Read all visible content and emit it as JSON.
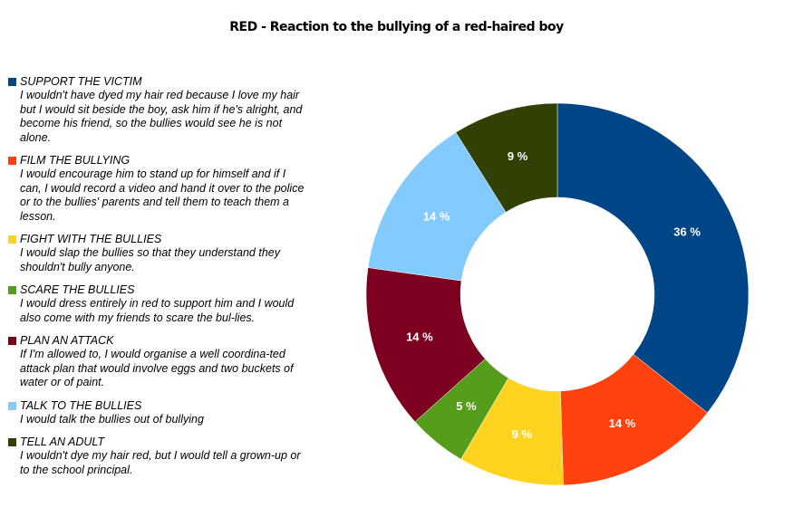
{
  "title": "RED - Reaction to the bullying of a red-haired boy",
  "chart_data": {
    "type": "pie",
    "title": "RED - Reaction to the bullying of a red-haired boy",
    "donut": true,
    "legend_position": "left",
    "slices": [
      {
        "name": "SUPPORT THE VICTIM",
        "value": 36,
        "label": "36 %",
        "color": "#004586",
        "label_color": "#ffffff",
        "description": "I wouldn't have dyed my hair red because I love my hair but I would sit beside the boy, ask him if he's alright, and become his friend, so the bullies would see he is not alone."
      },
      {
        "name": "FILM THE BULLYING",
        "value": 14,
        "label": "14 %",
        "color": "#ff420e",
        "label_color": "#ffffff",
        "description": "I would encourage him to stand up for himself and if I can, I would record a video and hand it over to the police or to the bullies' parents and tell them to teach them a lesson."
      },
      {
        "name": "FIGHT WITH THE BULLIES",
        "value": 9,
        "label": "9 %",
        "color": "#ffd320",
        "label_color": "#ffffff",
        "description": "I would slap the bullies so that they understand they shouldn't bully anyone."
      },
      {
        "name": "SCARE THE BULLIES",
        "value": 5,
        "label": "5 %",
        "color": "#579d1c",
        "label_color": "#ffffff",
        "description": "I would dress entirely in red to support him and I would also come with my friends to scare the bul-lies."
      },
      {
        "name": "PLAN AN ATTACK",
        "value": 14,
        "label": "14 %",
        "color": "#7e0021",
        "label_color": "#ffffff",
        "description": "If I'm allowed to, I would organise a well coordina-ted attack plan that would involve eggs and two buckets of water or of paint."
      },
      {
        "name": "TALK TO THE BULLIES",
        "value": 14,
        "label": "14 %",
        "color": "#83caff",
        "label_color": "#ffffff",
        "description": "I would talk the bullies out of bullying"
      },
      {
        "name": "TELL AN ADULT",
        "value": 9,
        "label": "9 %",
        "color": "#314004",
        "label_color": "#ffffff",
        "description": "I wouldn't dye my hair red, but I would tell a grown-up or to the school principal."
      }
    ]
  }
}
